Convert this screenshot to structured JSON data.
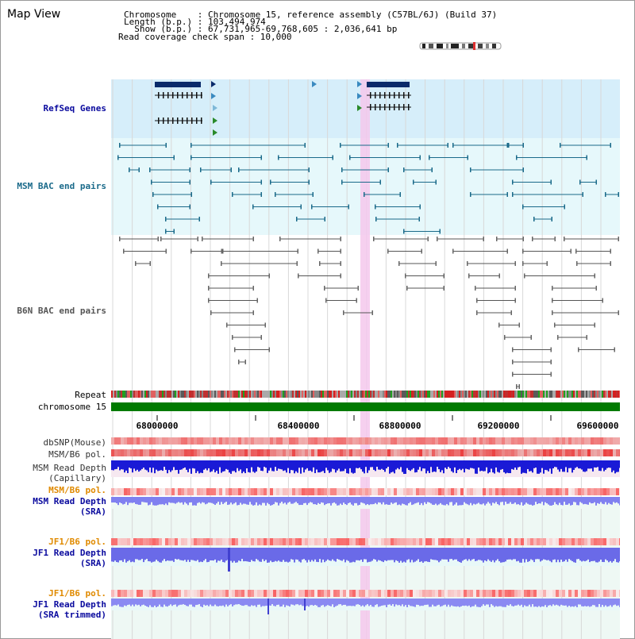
{
  "header": {
    "title": "Map View",
    "info_lines": [
      "Chromosome    : Chromosome 15, reference assembly (C57BL/6J) (Build 37)",
      "Length (b.p.) : 103,494,974",
      "  Show (b.p.) : 67,731,965-69,768,605 : 2,036,641 bp",
      "Read coverage check span : 10,000"
    ]
  },
  "tracks": {
    "refseq": {
      "label": "RefSeq Genes",
      "color": "#0a0a9e"
    },
    "msm_bac": {
      "label": "MSM BAC end pairs",
      "color": "#1a6a8a"
    },
    "b6n_bac": {
      "label": "B6N BAC end pairs",
      "color": "#555555"
    },
    "repeat": {
      "label": "Repeat"
    },
    "chromosome": {
      "label": "chromosome 15"
    },
    "dbsnp": {
      "label": "dbSNP(Mouse)"
    },
    "msm_b6_pol_1": {
      "label": "MSM/B6 pol."
    },
    "msm_read_depth_cap": {
      "label_line1": "MSM Read Depth",
      "label_line2": "(Capillary)"
    },
    "msm_b6_pol_2": {
      "label": "MSM/B6 pol.",
      "color": "#e08a00"
    },
    "msm_read_depth_sra": {
      "label_line1": "MSM Read Depth",
      "label_line2": "(SRA)",
      "color": "#0a0a9e"
    },
    "jf1_b6_pol_1": {
      "label": "JF1/B6 pol.",
      "color": "#e08a00"
    },
    "jf1_read_depth_sra": {
      "label_line1": "JF1 Read Depth",
      "label_line2": "(SRA)",
      "color": "#0a0a9e"
    },
    "jf1_b6_pol_2": {
      "label": "JF1/B6 pol.",
      "color": "#e08a00"
    },
    "jf1_read_depth_trim": {
      "label_line1": "JF1 Read Depth",
      "label_line2": "(SRA trimmed)",
      "color": "#0a0a9e"
    }
  },
  "axis": {
    "ticks": [
      "68000000",
      "68400000",
      "68800000",
      "69200000",
      "69600000"
    ]
  },
  "colors": {
    "highlight": "#f5c8ec",
    "refseq_bg": "#d6eefa",
    "msm_bg": "#e6f8fb",
    "chromosome_bar": "#007a00"
  }
}
